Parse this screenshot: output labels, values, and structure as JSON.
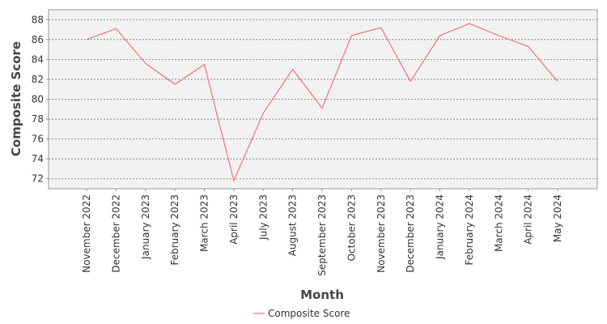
{
  "chart_data": {
    "type": "line",
    "x_label": "Month",
    "y_label": "Composite Score",
    "categories": [
      "November 2022",
      "December 2022",
      "January 2023",
      "February 2023",
      "March 2023",
      "April 2023",
      "July 2023",
      "August 2023",
      "September 2023",
      "October 2023",
      "November 2023",
      "December 2023",
      "January 2024",
      "February 2024",
      "March 2024",
      "April 2024",
      "May 2024"
    ],
    "series": [
      {
        "name": "Composite Score",
        "color": "#f25c5c",
        "values": [
          86.0,
          87.1,
          83.6,
          81.5,
          83.5,
          71.8,
          78.6,
          83.0,
          79.1,
          86.4,
          87.2,
          81.8,
          86.4,
          87.6,
          86.4,
          85.3,
          81.8
        ]
      }
    ],
    "ylim": [
      71,
      89
    ],
    "yticks": [
      72,
      74,
      76,
      78,
      80,
      82,
      84,
      86,
      88
    ],
    "grid": true,
    "legend": "bottom"
  }
}
